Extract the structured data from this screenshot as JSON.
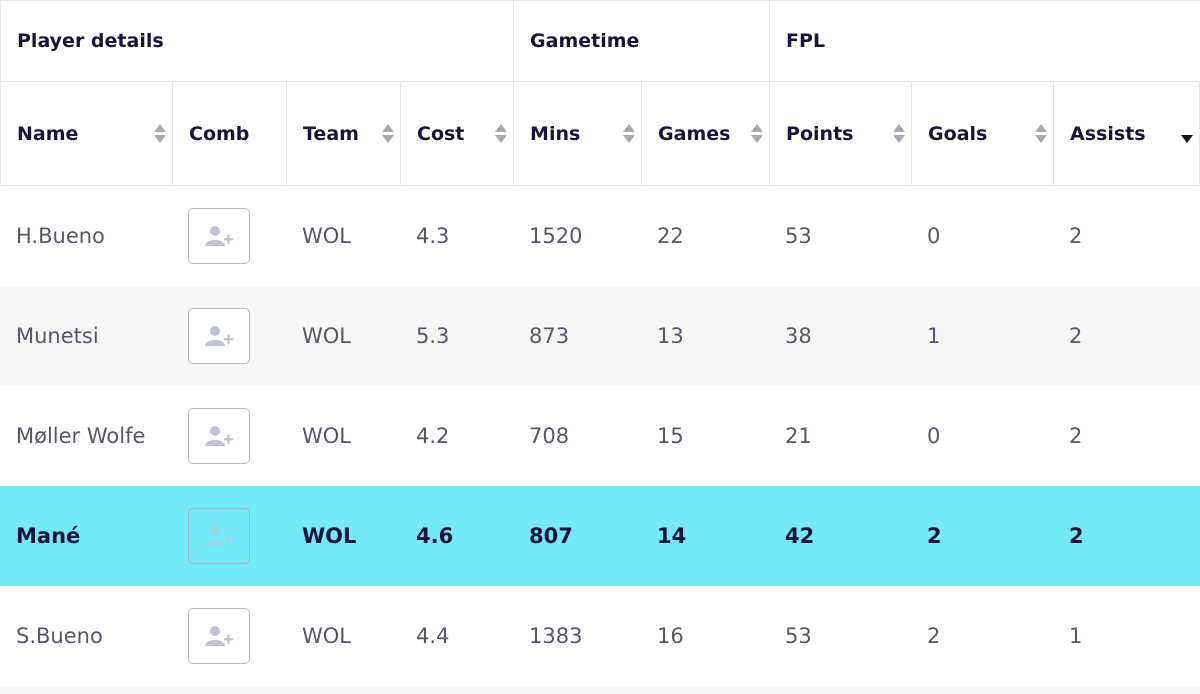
{
  "groups": [
    {
      "label": "Player details"
    },
    {
      "label": "Gametime"
    },
    {
      "label": "FPL"
    }
  ],
  "columns": [
    {
      "label": "Name",
      "sortable": true
    },
    {
      "label": "Comb",
      "sortable": false
    },
    {
      "label": "Team",
      "sortable": true
    },
    {
      "label": "Cost",
      "sortable": true
    },
    {
      "label": "Mins",
      "sortable": true
    },
    {
      "label": "Games",
      "sortable": true
    },
    {
      "label": "Points",
      "sortable": true
    },
    {
      "label": "Goals",
      "sortable": true
    },
    {
      "label": "Assists",
      "sortable": true,
      "sort": "desc"
    }
  ],
  "rows": [
    {
      "name": "H.Bueno",
      "team": "WOL",
      "cost": "4.3",
      "mins": "1520",
      "games": "22",
      "points": "53",
      "goals": "0",
      "assists": "2"
    },
    {
      "name": "Munetsi",
      "team": "WOL",
      "cost": "5.3",
      "mins": "873",
      "games": "13",
      "points": "38",
      "goals": "1",
      "assists": "2"
    },
    {
      "name": "Møller Wolfe",
      "team": "WOL",
      "cost": "4.2",
      "mins": "708",
      "games": "15",
      "points": "21",
      "goals": "0",
      "assists": "2"
    },
    {
      "name": "Mané",
      "team": "WOL",
      "cost": "4.6",
      "mins": "807",
      "games": "14",
      "points": "42",
      "goals": "2",
      "assists": "2",
      "highlighted": true
    },
    {
      "name": "S.Bueno",
      "team": "WOL",
      "cost": "4.4",
      "mins": "1383",
      "games": "16",
      "points": "53",
      "goals": "2",
      "assists": "1"
    }
  ],
  "icons": {
    "comb_button": "add-user-icon",
    "sort": "sort-icon"
  },
  "colors": {
    "highlight": "#74e9f8",
    "alt_row": "#f6f6f6",
    "header_text": "#1b1438"
  }
}
